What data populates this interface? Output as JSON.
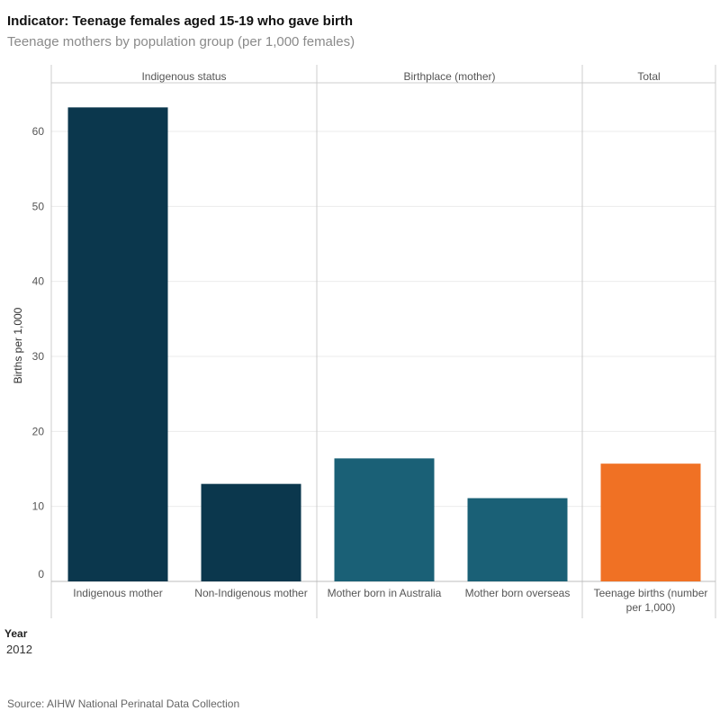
{
  "header": {
    "title": "Indicator: Teenage females aged 15-19 who gave birth",
    "subtitle": "Teenage mothers by population group (per 1,000 females)"
  },
  "filter": {
    "label": "Year",
    "value": "2012"
  },
  "footer": {
    "source": "Source: AIHW National Perinatal Data Collection"
  },
  "colors": {
    "indigenous_group": "#0b374d",
    "birthplace_group": "#1a6076",
    "total": "#f07124",
    "gridline": "#ebebeb",
    "divider": "#cccccc"
  },
  "chart_data": {
    "type": "bar",
    "ylabel": "Births per 1,000",
    "xlabel": "",
    "ylim": [
      0,
      65
    ],
    "yticks": [
      0,
      10,
      20,
      30,
      40,
      50,
      60
    ],
    "grid": true,
    "panels": [
      {
        "name": "Indigenous status",
        "categories": [
          "Indigenous mother",
          "Non-Indigenous mother"
        ],
        "values": [
          63.2,
          13.0
        ],
        "color": "#0b374d"
      },
      {
        "name": "Birthplace (mother)",
        "categories": [
          "Mother born in Australia",
          "Mother born overseas"
        ],
        "values": [
          16.4,
          11.1
        ],
        "color": "#1a6076"
      },
      {
        "name": "Total",
        "categories": [
          "Teenage births (number per 1,000)"
        ],
        "values": [
          15.7
        ],
        "color": "#f07124"
      }
    ]
  }
}
